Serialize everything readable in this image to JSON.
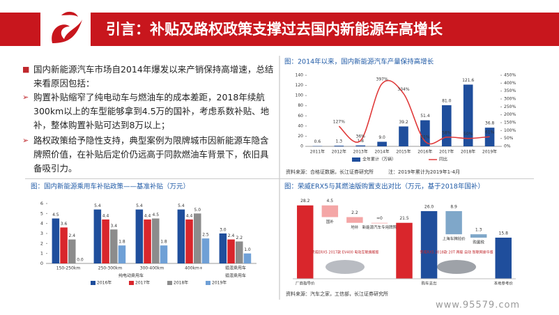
{
  "header": {
    "title": "引言：补贴及路权政策支撑过去国内新能源车高增长"
  },
  "bullets": [
    {
      "text": "国内新能源汽车市场自2014年爆发以来产销保持高增速，总结来看原因包括："
    },
    {
      "text": "购置补贴缩窄了纯电动车与燃油车的成本差距，2018年续航300km以上的车型能够拿到4.5万的国补，考虑系数补贴、地补，整体购置补贴可达到8万以上；"
    },
    {
      "text": "路权政策给予隐性支持，典型案例为限牌城市因新能源车隐含牌照价值，在补贴后定价仍远高于同款燃油车背景下，依旧具备吸引力。"
    }
  ],
  "chart_data": [
    {
      "type": "bar_line",
      "title": "图：2014年以来，国内新能源汽车产量保持高增长",
      "categories": [
        "2011年",
        "2012年",
        "2013年",
        "2014年",
        "2015年",
        "2016年",
        "2017年",
        "2018年",
        "2019年"
      ],
      "series": [
        {
          "name": "全年累计（万辆）",
          "color": "#1f4e9c",
          "values": [
            0.6,
            1.3,
            1.8,
            9.0,
            39.2,
            51.4,
            81.0,
            121.6,
            36.8
          ],
          "value_labels": [
            "0.6",
            "1.3",
            "1.8",
            "9.0",
            "39.2",
            "51.4",
            "81.0",
            "121.6",
            "36.8"
          ]
        },
        {
          "name": "同比",
          "color": "#e03a3a",
          "axis": "y2",
          "values": [
            null,
            127,
            36,
            397,
            334,
            31,
            58,
            50,
            61
          ],
          "value_labels": [
            null,
            "127%",
            "36%",
            "397%",
            "334%",
            "31%",
            "58%",
            "50%",
            "61%"
          ]
        }
      ],
      "ylim": [
        0,
        140
      ],
      "yticks": [
        0,
        20,
        40,
        60,
        80,
        100,
        120,
        140
      ],
      "y2lim": [
        0,
        450
      ],
      "y2ticks": [
        {
          "value": 0,
          "label": "0%"
        },
        {
          "value": 50,
          "label": "50%"
        },
        {
          "value": 100,
          "label": "100%"
        },
        {
          "value": 150,
          "label": "150%"
        },
        {
          "value": 200,
          "label": "200%"
        },
        {
          "value": 250,
          "label": "250%"
        },
        {
          "value": 300,
          "label": "300%"
        },
        {
          "value": 350,
          "label": "350%"
        },
        {
          "value": 400,
          "label": "400%"
        },
        {
          "value": 450,
          "label": "450%"
        }
      ],
      "source": "资料来源：合格证数据，长江证券研究所　　　注：2019年累计为2019年1-4月"
    },
    {
      "type": "grouped_bar",
      "title": "图：国内新能源乘用车补贴政策——基准补贴（万元）",
      "categories": [
        "150-250km",
        "250-300km",
        "300-400km",
        "400km+",
        "插混乘用车"
      ],
      "group_labels": [
        "纯电动乘用车",
        "插混乘用车"
      ],
      "series": [
        {
          "name": "2016年",
          "color": "#1f4e9c",
          "values": [
            4.5,
            5.4,
            5.4,
            5.4,
            3.0
          ],
          "value_labels": [
            "4.5",
            "5.4",
            "5.4",
            "5.4",
            "3.0"
          ]
        },
        {
          "name": "2017年",
          "color": "#d9262c",
          "values": [
            3.6,
            4.4,
            4.4,
            4.4,
            2.4
          ],
          "value_labels": [
            "3.6",
            "4.4",
            "4.4",
            "4.4",
            "2.4"
          ]
        },
        {
          "name": "2018年",
          "color": "#8c8c8c",
          "values": [
            2.4,
            3.4,
            4.5,
            5.0,
            2.2
          ],
          "value_labels": [
            "2.4",
            "3.4",
            "4.5",
            "5.0",
            "2.2"
          ]
        },
        {
          "name": "2019年",
          "color": "#6fa0d6",
          "values": [
            0.0,
            1.8,
            1.8,
            2.5,
            1.0
          ],
          "value_labels": [
            "0.0",
            "1.8",
            "1.8",
            "2.5",
            "1.0"
          ]
        }
      ],
      "ylim": [
        0,
        6
      ],
      "yticks": [
        0,
        1,
        2,
        3,
        4,
        5,
        6
      ]
    },
    {
      "type": "waterfall",
      "title": "图：荣威ERX5与其燃油版购置支出对比（万元，基于2018年国补）",
      "categories": [
        "厂商指导价",
        "国补",
        "地补",
        "新能源汽车专用牌照",
        null,
        "购车支出",
        "上海车牌拍价",
        "购置税",
        "本地参考价"
      ],
      "values": [
        28.2,
        4.5,
        2.2,
        0,
        21.5,
        26.0,
        8.9,
        1.3,
        15.8
      ],
      "value_labels": [
        "28.2",
        "4.5",
        "2.2",
        "≈0",
        "21.5",
        "26.0",
        "8.9",
        "1.3",
        "15.8"
      ],
      "kinds": [
        "total",
        "decrease",
        "decrease",
        "decrease",
        "total",
        "total",
        "decrease",
        "decrease",
        "total"
      ],
      "colors": [
        "#d9262c",
        "#f4a6a6",
        "#f4a6a6",
        "#f4a6a6",
        "#d9262c",
        "#1f4e9c",
        "#7fa7c9",
        "#7fa7c9",
        "#1f4e9c"
      ],
      "ylim": [
        0,
        30
      ],
      "annotations": [
        "荣威ERX5 2017款 EV400 电动互联旗舰版",
        "荣威RX5 2018款 20T 两驱 自动 智联网豪华版"
      ],
      "source": "资料来源：汽车之家，工信部，长江证券研究所"
    }
  ],
  "footer": {
    "url": "www.95579.com"
  }
}
